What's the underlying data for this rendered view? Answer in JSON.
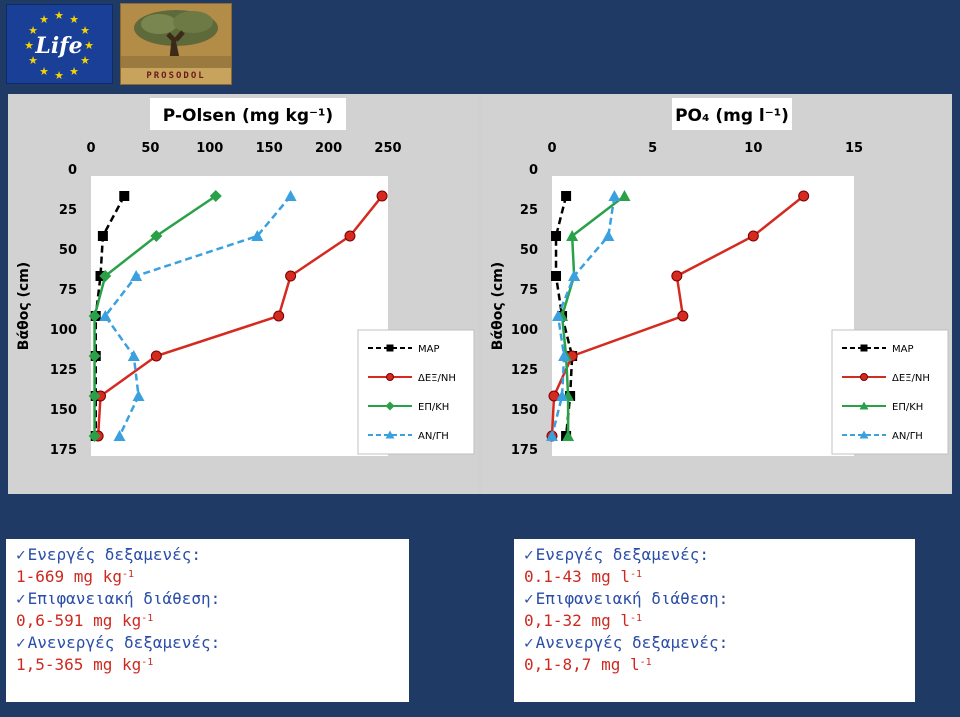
{
  "header": {
    "eu_logo_text": "Life",
    "partner_logo_text": "PROSODOL",
    "colors": {
      "background": "#1f3a64",
      "eu_blue": "#1a3f96",
      "eu_star": "#f5d400"
    }
  },
  "legend": {
    "series_labels": [
      "MAP",
      "ΔΕΞ/ΝΗ",
      "ΕΠ/ΚΗ",
      "ΑΝ/ΓΗ"
    ]
  },
  "chart_data": [
    {
      "type": "line",
      "title": "P-Olsen (mg kg⁻¹)",
      "ylabel": "Βάθος (cm)",
      "xlim": [
        0,
        250
      ],
      "ylim": [
        0,
        175
      ],
      "y_inverted": true,
      "x_axis_position": "top",
      "x_ticks": [
        "0",
        "50",
        "100",
        "150",
        "200",
        "250"
      ],
      "y_ticks": [
        "0",
        "25",
        "50",
        "75",
        "100",
        "125",
        "150",
        "175"
      ],
      "legend_position": "bottom-right",
      "series": [
        {
          "name": "MAP",
          "color": "#000000",
          "marker": "square",
          "line": "dashed",
          "points": [
            [
              28,
              12.5
            ],
            [
              10,
              37.5
            ],
            [
              8,
              62.5
            ],
            [
              4,
              87.5
            ],
            [
              4,
              112.5
            ],
            [
              4,
              137.5
            ],
            [
              4,
              162.5
            ]
          ]
        },
        {
          "name": "ΔΕΞ/ΝΗ",
          "color": "#d42a20",
          "marker": "circle",
          "line": "solid",
          "points": [
            [
              245,
              12.5
            ],
            [
              218,
              37.5
            ],
            [
              168,
              62.5
            ],
            [
              158,
              87.5
            ],
            [
              55,
              112.5
            ],
            [
              8,
              137.5
            ],
            [
              6,
              162.5
            ]
          ]
        },
        {
          "name": "ΕΠ/ΚΗ",
          "color": "#2aa048",
          "marker": "diamond",
          "line": "solid",
          "points": [
            [
              105,
              12.5
            ],
            [
              55,
              37.5
            ],
            [
              12,
              62.5
            ],
            [
              3,
              87.5
            ],
            [
              3,
              112.5
            ],
            [
              3,
              137.5
            ],
            [
              3,
              162.5
            ]
          ]
        },
        {
          "name": "ΑΝ/ΓΗ",
          "color": "#3aa0e0",
          "marker": "triangle",
          "line": "dashed",
          "points": [
            [
              168,
              12.5
            ],
            [
              140,
              37.5
            ],
            [
              38,
              62.5
            ],
            [
              12,
              87.5
            ],
            [
              36,
              112.5
            ],
            [
              40,
              137.5
            ],
            [
              24,
              162.5
            ]
          ]
        }
      ]
    },
    {
      "type": "line",
      "title": "PO₄ (mg l⁻¹)",
      "ylabel": "Βάθος (cm)",
      "xlim": [
        0,
        15
      ],
      "ylim": [
        0,
        175
      ],
      "y_inverted": true,
      "x_axis_position": "top",
      "x_ticks": [
        "0",
        "5",
        "10",
        "15"
      ],
      "y_ticks": [
        "0",
        "25",
        "50",
        "75",
        "100",
        "125",
        "150",
        "175"
      ],
      "legend_position": "bottom-right",
      "series": [
        {
          "name": "MAP",
          "color": "#000000",
          "marker": "square",
          "line": "dashed",
          "points": [
            [
              0.7,
              12.5
            ],
            [
              0.2,
              37.5
            ],
            [
              0.2,
              62.5
            ],
            [
              0.5,
              87.5
            ],
            [
              1.0,
              112.5
            ],
            [
              0.9,
              137.5
            ],
            [
              0.7,
              162.5
            ]
          ]
        },
        {
          "name": "ΔΕΞ/ΝΗ",
          "color": "#d42a20",
          "marker": "circle",
          "line": "solid",
          "points": [
            [
              12.5,
              12.5
            ],
            [
              10.0,
              37.5
            ],
            [
              6.2,
              62.5
            ],
            [
              6.5,
              87.5
            ],
            [
              1.0,
              112.5
            ],
            [
              0.1,
              137.5
            ],
            [
              0.0,
              162.5
            ]
          ]
        },
        {
          "name": "ΕΠ/ΚΗ",
          "color": "#2aa048",
          "marker": "triangle",
          "line": "solid",
          "points": [
            [
              3.6,
              12.5
            ],
            [
              1.0,
              37.5
            ],
            [
              1.1,
              62.5
            ],
            [
              0.5,
              87.5
            ],
            [
              0.7,
              112.5
            ],
            [
              0.8,
              137.5
            ],
            [
              0.8,
              162.5
            ]
          ]
        },
        {
          "name": "ΑΝ/ΓΗ",
          "color": "#3aa0e0",
          "marker": "triangle",
          "line": "dashed",
          "points": [
            [
              3.1,
              12.5
            ],
            [
              2.8,
              37.5
            ],
            [
              1.1,
              62.5
            ],
            [
              0.3,
              87.5
            ],
            [
              0.6,
              112.5
            ],
            [
              0.5,
              137.5
            ],
            [
              0.0,
              162.5
            ]
          ]
        }
      ]
    }
  ],
  "textboxes": [
    {
      "lines": [
        {
          "style": "head",
          "text": "Ενεργές δεξαμενές:"
        },
        {
          "style": "val",
          "text": "1-669 mg kg",
          "sup": "-1"
        },
        {
          "style": "head",
          "text": "Επιφανειακή διάθεση:"
        },
        {
          "style": "val",
          "text": "0,6-591 mg kg",
          "sup": "-1"
        },
        {
          "style": "head",
          "text": "Ανενεργές δεξαμενές:"
        },
        {
          "style": "val",
          "text": "1,5-365 mg kg",
          "sup": "-1"
        }
      ]
    },
    {
      "lines": [
        {
          "style": "head",
          "text": "Ενεργές δεξαμενές:"
        },
        {
          "style": "val",
          "text": "0.1-43 mg l",
          "sup": "-1"
        },
        {
          "style": "head",
          "text": "Επιφανειακή διάθεση:"
        },
        {
          "style": "val",
          "text": "0,1-32 mg l",
          "sup": "-1"
        },
        {
          "style": "head",
          "text": "Ανενεργές δεξαμενές:"
        },
        {
          "style": "val",
          "text": "0,1-8,7 mg l",
          "sup": "-1"
        }
      ]
    }
  ]
}
